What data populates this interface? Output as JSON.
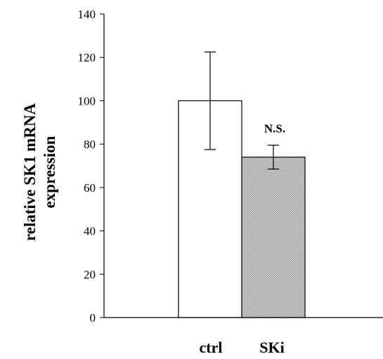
{
  "chart_data": {
    "type": "bar",
    "categories": [
      "ctrl",
      "SKi"
    ],
    "values": [
      100,
      74
    ],
    "errors": [
      22.5,
      5.5
    ],
    "ylabel_lines": [
      "relative SK1 mRNA",
      "expression"
    ],
    "ylim": [
      0,
      140
    ],
    "yticks": [
      0,
      20,
      40,
      60,
      80,
      100,
      120,
      140
    ],
    "annotation": {
      "text": "N.S.",
      "category": "SKi"
    },
    "bar_fills": [
      "#ffffff",
      "hatched-gray"
    ],
    "grid": false
  }
}
